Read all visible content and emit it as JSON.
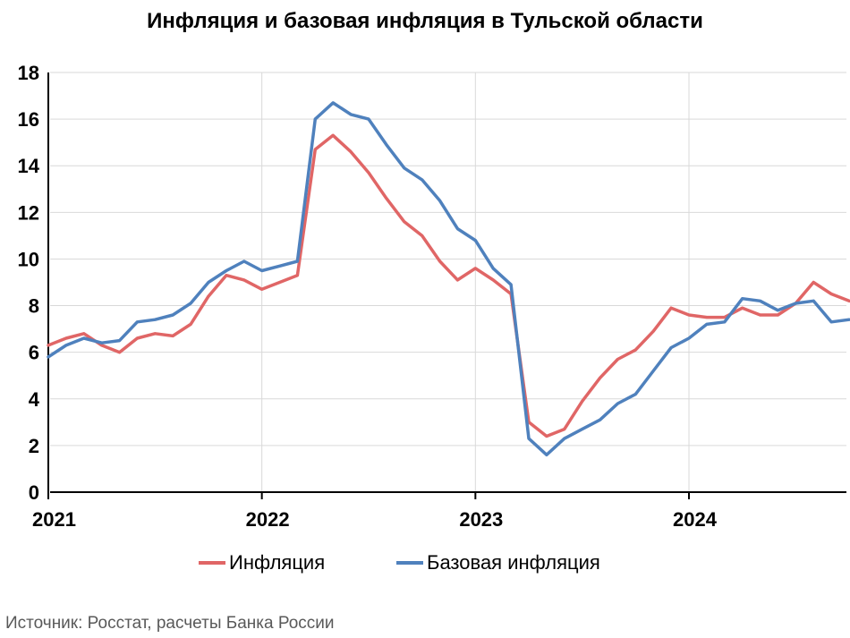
{
  "chart_data": {
    "type": "line",
    "title": "Инфляция и базовая инфляция в Тульской области",
    "xlabel": "",
    "ylabel": "",
    "ylim": [
      0,
      18
    ],
    "yticks": [
      0,
      2,
      4,
      6,
      8,
      10,
      12,
      14,
      16,
      18
    ],
    "xticks": [
      "2021",
      "2022",
      "2023",
      "2024"
    ],
    "x_start": "2021-01",
    "grid": true,
    "legend": "bottom",
    "colors": {
      "inflation": "#e06666",
      "core": "#4f81bd"
    },
    "x": [
      "2021-01",
      "2021-02",
      "2021-03",
      "2021-04",
      "2021-05",
      "2021-06",
      "2021-07",
      "2021-08",
      "2021-09",
      "2021-10",
      "2021-11",
      "2021-12",
      "2022-01",
      "2022-02",
      "2022-03",
      "2022-04",
      "2022-05",
      "2022-06",
      "2022-07",
      "2022-08",
      "2022-09",
      "2022-10",
      "2022-11",
      "2022-12",
      "2023-01",
      "2023-02",
      "2023-03",
      "2023-04",
      "2023-05",
      "2023-06",
      "2023-07",
      "2023-08",
      "2023-09",
      "2023-10",
      "2023-11",
      "2023-12",
      "2024-01",
      "2024-02",
      "2024-03",
      "2024-04",
      "2024-05",
      "2024-06",
      "2024-07",
      "2024-08",
      "2024-09",
      "2024-10"
    ],
    "series": [
      {
        "name": "Инфляция",
        "values": [
          6.3,
          6.6,
          6.8,
          6.3,
          6.0,
          6.6,
          6.8,
          6.7,
          7.2,
          8.4,
          9.3,
          9.1,
          8.7,
          9.0,
          9.3,
          14.7,
          15.3,
          14.6,
          13.7,
          12.6,
          11.6,
          11.0,
          9.9,
          9.1,
          9.6,
          9.1,
          8.5,
          3.0,
          2.4,
          2.7,
          3.9,
          4.9,
          5.7,
          6.1,
          6.9,
          7.9,
          7.6,
          7.5,
          7.5,
          7.9,
          7.6,
          7.6,
          8.1,
          9.0,
          8.5,
          8.2
        ]
      },
      {
        "name": "Базовая инфляция",
        "values": [
          5.8,
          6.3,
          6.6,
          6.4,
          6.5,
          7.3,
          7.4,
          7.6,
          8.1,
          9.0,
          9.5,
          9.9,
          9.5,
          9.7,
          9.9,
          16.0,
          16.7,
          16.2,
          16.0,
          14.9,
          13.9,
          13.4,
          12.5,
          11.3,
          10.8,
          9.6,
          8.9,
          2.3,
          1.6,
          2.3,
          2.7,
          3.1,
          3.8,
          4.2,
          5.2,
          6.2,
          6.6,
          7.2,
          7.3,
          8.3,
          8.2,
          7.8,
          8.1,
          8.2,
          7.3,
          7.4
        ]
      }
    ]
  },
  "source": "Источник: Росстат, расчеты Банка России"
}
